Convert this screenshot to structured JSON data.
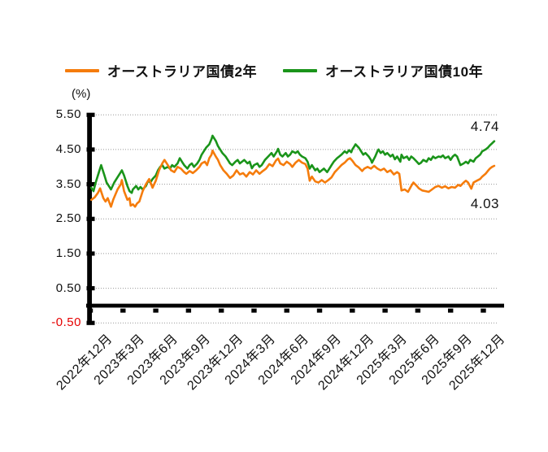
{
  "legend": {
    "items": [
      {
        "label": "オーストラリア国債2年",
        "color": "#F57C0C"
      },
      {
        "label": "オーストラリア国債10年",
        "color": "#1A941A"
      }
    ]
  },
  "axis_unit": "(%)",
  "chart_data": {
    "type": "line",
    "ylabel": "(%)",
    "ylim": [
      -0.5,
      5.5
    ],
    "grid": "horizontal-dotted",
    "legend_position": "top",
    "y_tick_labels": [
      "5.50",
      "4.50",
      "3.50",
      "2.50",
      "1.50",
      "0.50",
      "-0.50"
    ],
    "x_tick_labels": [
      "2022年12月",
      "2023年3月",
      "2023年6月",
      "2023年9月",
      "2023年12月",
      "2024年3月",
      "2024年6月",
      "2024年9月",
      "2024年12月",
      "2025年3月",
      "2025年6月",
      "2025年9月",
      "2025年12月"
    ],
    "x_unit": "months-from-2022-12",
    "series": [
      {
        "id": "2y",
        "name": "オーストラリア国債2年",
        "color": "#F57C0C",
        "end_label": "4.03",
        "label_placement": "below",
        "points": [
          [
            0.1,
            3.05
          ],
          [
            0.4,
            3.12
          ],
          [
            0.7,
            3.25
          ],
          [
            0.9,
            3.38
          ],
          [
            1.2,
            3.1
          ],
          [
            1.4,
            3.0
          ],
          [
            1.6,
            3.1
          ],
          [
            1.9,
            2.85
          ],
          [
            2.1,
            3.05
          ],
          [
            2.3,
            3.2
          ],
          [
            2.5,
            3.35
          ],
          [
            2.8,
            3.5
          ],
          [
            2.9,
            3.62
          ],
          [
            3.1,
            3.3
          ],
          [
            3.4,
            3.05
          ],
          [
            3.6,
            3.1
          ],
          [
            3.7,
            2.88
          ],
          [
            3.9,
            2.92
          ],
          [
            4.1,
            2.85
          ],
          [
            4.3,
            2.95
          ],
          [
            4.5,
            3.0
          ],
          [
            4.8,
            3.3
          ],
          [
            5.1,
            3.5
          ],
          [
            5.4,
            3.65
          ],
          [
            5.7,
            3.4
          ],
          [
            6.0,
            3.6
          ],
          [
            6.3,
            3.9
          ],
          [
            6.6,
            4.1
          ],
          [
            6.8,
            4.2
          ],
          [
            7.1,
            4.05
          ],
          [
            7.4,
            3.9
          ],
          [
            7.7,
            3.85
          ],
          [
            8.0,
            4.0
          ],
          [
            8.3,
            3.95
          ],
          [
            8.6,
            3.85
          ],
          [
            8.8,
            3.8
          ],
          [
            9.1,
            3.88
          ],
          [
            9.4,
            3.82
          ],
          [
            9.7,
            3.9
          ],
          [
            10.0,
            4.0
          ],
          [
            10.2,
            4.1
          ],
          [
            10.5,
            4.15
          ],
          [
            10.7,
            4.05
          ],
          [
            10.9,
            4.25
          ],
          [
            11.1,
            4.35
          ],
          [
            11.2,
            4.47
          ],
          [
            11.5,
            4.3
          ],
          [
            11.7,
            4.2
          ],
          [
            11.9,
            4.05
          ],
          [
            12.2,
            3.9
          ],
          [
            12.5,
            3.8
          ],
          [
            12.8,
            3.68
          ],
          [
            13.1,
            3.75
          ],
          [
            13.4,
            3.9
          ],
          [
            13.7,
            3.78
          ],
          [
            14.0,
            3.82
          ],
          [
            14.3,
            3.72
          ],
          [
            14.6,
            3.85
          ],
          [
            14.9,
            3.78
          ],
          [
            15.2,
            3.9
          ],
          [
            15.5,
            3.8
          ],
          [
            15.8,
            3.88
          ],
          [
            16.1,
            3.95
          ],
          [
            16.4,
            4.08
          ],
          [
            16.7,
            4.02
          ],
          [
            17.0,
            4.18
          ],
          [
            17.2,
            4.24
          ],
          [
            17.4,
            4.1
          ],
          [
            17.7,
            4.05
          ],
          [
            18.0,
            4.15
          ],
          [
            18.3,
            4.08
          ],
          [
            18.5,
            4.0
          ],
          [
            18.8,
            4.12
          ],
          [
            19.1,
            4.2
          ],
          [
            19.4,
            4.12
          ],
          [
            19.7,
            4.08
          ],
          [
            19.9,
            3.95
          ],
          [
            20.1,
            3.6
          ],
          [
            20.3,
            3.72
          ],
          [
            20.6,
            3.58
          ],
          [
            20.9,
            3.55
          ],
          [
            21.2,
            3.62
          ],
          [
            21.5,
            3.55
          ],
          [
            21.8,
            3.62
          ],
          [
            22.1,
            3.7
          ],
          [
            22.4,
            3.85
          ],
          [
            22.7,
            3.95
          ],
          [
            23.0,
            4.05
          ],
          [
            23.3,
            4.12
          ],
          [
            23.6,
            4.22
          ],
          [
            23.8,
            4.25
          ],
          [
            24.0,
            4.18
          ],
          [
            24.3,
            4.05
          ],
          [
            24.6,
            3.98
          ],
          [
            24.9,
            3.88
          ],
          [
            25.1,
            3.95
          ],
          [
            25.4,
            4.0
          ],
          [
            25.7,
            3.95
          ],
          [
            26.0,
            4.03
          ],
          [
            26.3,
            3.95
          ],
          [
            26.6,
            3.9
          ],
          [
            26.9,
            3.95
          ],
          [
            27.2,
            3.85
          ],
          [
            27.5,
            3.9
          ],
          [
            27.8,
            3.78
          ],
          [
            28.1,
            3.85
          ],
          [
            28.3,
            3.8
          ],
          [
            28.5,
            3.32
          ],
          [
            28.8,
            3.35
          ],
          [
            29.1,
            3.28
          ],
          [
            29.4,
            3.45
          ],
          [
            29.6,
            3.55
          ],
          [
            29.9,
            3.45
          ],
          [
            30.1,
            3.38
          ],
          [
            30.4,
            3.32
          ],
          [
            30.7,
            3.3
          ],
          [
            31.0,
            3.28
          ],
          [
            31.3,
            3.35
          ],
          [
            31.6,
            3.42
          ],
          [
            31.9,
            3.45
          ],
          [
            32.2,
            3.4
          ],
          [
            32.5,
            3.44
          ],
          [
            32.8,
            3.38
          ],
          [
            33.1,
            3.42
          ],
          [
            33.4,
            3.4
          ],
          [
            33.7,
            3.48
          ],
          [
            33.9,
            3.45
          ],
          [
            34.2,
            3.55
          ],
          [
            34.4,
            3.6
          ],
          [
            34.6,
            3.55
          ],
          [
            34.9,
            3.37
          ],
          [
            35.1,
            3.55
          ],
          [
            35.4,
            3.6
          ],
          [
            35.7,
            3.65
          ],
          [
            35.9,
            3.72
          ],
          [
            36.2,
            3.8
          ],
          [
            36.4,
            3.88
          ],
          [
            36.6,
            3.95
          ],
          [
            36.8,
            4.0
          ],
          [
            37.0,
            4.03
          ]
        ]
      },
      {
        "id": "10y",
        "name": "オーストラリア国債10年",
        "color": "#1A941A",
        "end_label": "4.74",
        "label_placement": "above",
        "points": [
          [
            0.1,
            3.4
          ],
          [
            0.3,
            3.3
          ],
          [
            0.5,
            3.55
          ],
          [
            0.8,
            3.85
          ],
          [
            1.0,
            4.05
          ],
          [
            1.3,
            3.75
          ],
          [
            1.5,
            3.55
          ],
          [
            1.7,
            3.45
          ],
          [
            1.9,
            3.35
          ],
          [
            2.2,
            3.55
          ],
          [
            2.4,
            3.65
          ],
          [
            2.6,
            3.75
          ],
          [
            2.8,
            3.85
          ],
          [
            2.9,
            3.9
          ],
          [
            3.1,
            3.75
          ],
          [
            3.4,
            3.45
          ],
          [
            3.6,
            3.3
          ],
          [
            3.8,
            3.25
          ],
          [
            3.9,
            3.35
          ],
          [
            4.2,
            3.45
          ],
          [
            4.4,
            3.35
          ],
          [
            4.6,
            3.42
          ],
          [
            4.8,
            3.35
          ],
          [
            5.1,
            3.45
          ],
          [
            5.3,
            3.6
          ],
          [
            5.5,
            3.55
          ],
          [
            5.7,
            3.65
          ],
          [
            6.0,
            3.75
          ],
          [
            6.2,
            3.9
          ],
          [
            6.4,
            4.0
          ],
          [
            6.6,
            4.05
          ],
          [
            6.8,
            3.95
          ],
          [
            7.1,
            4.0
          ],
          [
            7.3,
            3.95
          ],
          [
            7.5,
            4.05
          ],
          [
            7.7,
            4.0
          ],
          [
            8.0,
            4.1
          ],
          [
            8.2,
            4.25
          ],
          [
            8.4,
            4.15
          ],
          [
            8.6,
            4.05
          ],
          [
            8.9,
            3.95
          ],
          [
            9.1,
            4.05
          ],
          [
            9.3,
            4.1
          ],
          [
            9.5,
            4.0
          ],
          [
            9.8,
            4.1
          ],
          [
            10.0,
            4.2
          ],
          [
            10.2,
            4.35
          ],
          [
            10.4,
            4.45
          ],
          [
            10.6,
            4.55
          ],
          [
            10.9,
            4.65
          ],
          [
            11.1,
            4.8
          ],
          [
            11.2,
            4.9
          ],
          [
            11.5,
            4.75
          ],
          [
            11.7,
            4.6
          ],
          [
            11.9,
            4.5
          ],
          [
            12.1,
            4.4
          ],
          [
            12.4,
            4.3
          ],
          [
            12.6,
            4.2
          ],
          [
            12.8,
            4.1
          ],
          [
            13.0,
            4.05
          ],
          [
            13.3,
            4.15
          ],
          [
            13.5,
            4.2
          ],
          [
            13.7,
            4.1
          ],
          [
            13.9,
            4.15
          ],
          [
            14.1,
            4.2
          ],
          [
            14.4,
            4.1
          ],
          [
            14.6,
            4.15
          ],
          [
            14.8,
            3.96
          ],
          [
            15.0,
            4.05
          ],
          [
            15.3,
            4.1
          ],
          [
            15.5,
            4.0
          ],
          [
            15.7,
            4.05
          ],
          [
            16.0,
            4.2
          ],
          [
            16.3,
            4.3
          ],
          [
            16.6,
            4.4
          ],
          [
            16.8,
            4.3
          ],
          [
            17.1,
            4.45
          ],
          [
            17.2,
            4.52
          ],
          [
            17.4,
            4.35
          ],
          [
            17.6,
            4.3
          ],
          [
            17.9,
            4.4
          ],
          [
            18.1,
            4.3
          ],
          [
            18.3,
            4.35
          ],
          [
            18.5,
            4.45
          ],
          [
            18.8,
            4.4
          ],
          [
            19.0,
            4.45
          ],
          [
            19.2,
            4.35
          ],
          [
            19.4,
            4.3
          ],
          [
            19.7,
            4.25
          ],
          [
            19.9,
            4.15
          ],
          [
            20.1,
            3.95
          ],
          [
            20.3,
            4.05
          ],
          [
            20.6,
            3.9
          ],
          [
            20.8,
            3.95
          ],
          [
            21.0,
            3.85
          ],
          [
            21.2,
            3.9
          ],
          [
            21.4,
            3.95
          ],
          [
            21.7,
            3.85
          ],
          [
            21.9,
            3.95
          ],
          [
            22.1,
            4.05
          ],
          [
            22.3,
            4.15
          ],
          [
            22.6,
            4.25
          ],
          [
            22.8,
            4.3
          ],
          [
            23.0,
            4.35
          ],
          [
            23.3,
            4.45
          ],
          [
            23.5,
            4.4
          ],
          [
            23.7,
            4.48
          ],
          [
            23.9,
            4.42
          ],
          [
            24.0,
            4.5
          ],
          [
            24.2,
            4.6
          ],
          [
            24.3,
            4.65
          ],
          [
            24.6,
            4.55
          ],
          [
            24.8,
            4.45
          ],
          [
            25.0,
            4.35
          ],
          [
            25.2,
            4.4
          ],
          [
            25.5,
            4.3
          ],
          [
            25.7,
            4.2
          ],
          [
            25.8,
            4.12
          ],
          [
            26.1,
            4.3
          ],
          [
            26.3,
            4.45
          ],
          [
            26.4,
            4.5
          ],
          [
            26.6,
            4.4
          ],
          [
            26.8,
            4.45
          ],
          [
            27.0,
            4.35
          ],
          [
            27.2,
            4.4
          ],
          [
            27.5,
            4.3
          ],
          [
            27.7,
            4.35
          ],
          [
            27.9,
            4.22
          ],
          [
            28.1,
            4.3
          ],
          [
            28.4,
            4.15
          ],
          [
            28.5,
            4.35
          ],
          [
            28.7,
            4.25
          ],
          [
            29.0,
            4.3
          ],
          [
            29.2,
            4.2
          ],
          [
            29.4,
            4.3
          ],
          [
            29.6,
            4.25
          ],
          [
            29.9,
            4.15
          ],
          [
            30.1,
            4.08
          ],
          [
            30.3,
            4.12
          ],
          [
            30.5,
            4.2
          ],
          [
            30.8,
            4.15
          ],
          [
            31.0,
            4.25
          ],
          [
            31.2,
            4.2
          ],
          [
            31.4,
            4.3
          ],
          [
            31.6,
            4.25
          ],
          [
            31.9,
            4.3
          ],
          [
            32.1,
            4.28
          ],
          [
            32.3,
            4.33
          ],
          [
            32.5,
            4.25
          ],
          [
            32.8,
            4.3
          ],
          [
            33.0,
            4.2
          ],
          [
            33.2,
            4.3
          ],
          [
            33.4,
            4.35
          ],
          [
            33.6,
            4.3
          ],
          [
            33.9,
            4.05
          ],
          [
            34.2,
            4.1
          ],
          [
            34.4,
            4.15
          ],
          [
            34.6,
            4.1
          ],
          [
            34.8,
            4.2
          ],
          [
            35.1,
            4.15
          ],
          [
            35.3,
            4.25
          ],
          [
            35.5,
            4.3
          ],
          [
            35.7,
            4.35
          ],
          [
            35.9,
            4.45
          ],
          [
            36.2,
            4.5
          ],
          [
            36.4,
            4.55
          ],
          [
            36.6,
            4.62
          ],
          [
            36.8,
            4.68
          ],
          [
            37.0,
            4.74
          ]
        ]
      }
    ]
  },
  "annotations": [
    {
      "series": "オーストラリア国債10年",
      "text": "4.74"
    },
    {
      "series": "オーストラリア国債2年",
      "text": "4.03"
    }
  ]
}
